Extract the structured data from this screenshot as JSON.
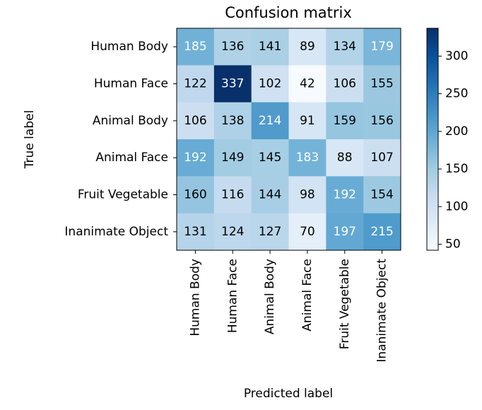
{
  "chart_data": {
    "type": "heatmap",
    "title": "Confusion matrix",
    "x_label": "Predicted label",
    "y_label": "True label",
    "x_categories": [
      "Human Body",
      "Human Face",
      "Animal Body",
      "Animal Face",
      "Fruit Vegetable",
      "Inanimate Object"
    ],
    "y_categories": [
      "Human Body",
      "Human Face",
      "Animal Body",
      "Animal Face",
      "Fruit Vegetable",
      "Inanimate Object"
    ],
    "values": [
      [
        185,
        136,
        141,
        89,
        134,
        179
      ],
      [
        122,
        337,
        102,
        42,
        106,
        155
      ],
      [
        106,
        138,
        214,
        91,
        159,
        156
      ],
      [
        192,
        149,
        145,
        183,
        88,
        107
      ],
      [
        160,
        116,
        144,
        98,
        192,
        154
      ],
      [
        131,
        124,
        127,
        70,
        197,
        215
      ]
    ],
    "colormap": [
      "#f7fbff",
      "#deebf7",
      "#c6dbef",
      "#9ecae1",
      "#6baed6",
      "#4292c6",
      "#2171b5",
      "#08519c",
      "#08306b"
    ],
    "clim": [
      42,
      337
    ],
    "colorbar_ticks": [
      50,
      100,
      150,
      200,
      250,
      300
    ]
  }
}
